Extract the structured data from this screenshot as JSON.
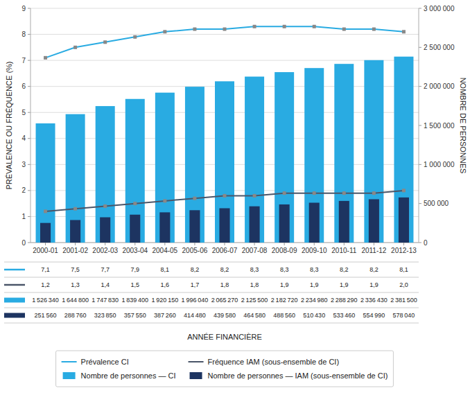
{
  "chart_data": {
    "type": "bar",
    "xlabel": "ANNÉE FINANCIÈRE",
    "ylabel": "PRÉVALENCE OU FRÉQUENCE (%)",
    "y2label": "NOMBRE DE PERSONNES",
    "categories": [
      "2000-01",
      "2001-02",
      "2002-03",
      "2003-04",
      "2004-05",
      "2005-06",
      "2006-07",
      "2007-08",
      "2008-09",
      "2009-10",
      "2010-11",
      "2011-12",
      "2012-13"
    ],
    "ylim": [
      0,
      9
    ],
    "yticks": [
      0,
      1,
      2,
      3,
      4,
      5,
      6,
      7,
      8,
      9
    ],
    "y2lim": [
      0,
      3000000
    ],
    "y2ticks": [
      0,
      {
        "value": 500000,
        "label": "500 000"
      },
      {
        "value": 1000000,
        "label": "1 000 000"
      },
      {
        "value": 1500000,
        "label": "1 500 000"
      },
      {
        "value": 2000000,
        "label": "2 000 000"
      },
      {
        "value": 2500000,
        "label": "2 500 000"
      },
      {
        "value": 3000000,
        "label": "3 000 000"
      }
    ],
    "grid": true,
    "legend": "bottom",
    "series": [
      {
        "name": "Prévalence CI",
        "type": "line",
        "color": "#29ABE2",
        "marker": "square",
        "values": [
          7.1,
          7.5,
          7.7,
          7.9,
          8.1,
          8.2,
          8.2,
          8.3,
          8.3,
          8.3,
          8.2,
          8.2,
          8.1
        ],
        "value_labels": [
          "7,1",
          "7,5",
          "7,7",
          "7,9",
          "8,1",
          "8,2",
          "8,2",
          "8,3",
          "8,3",
          "8,3",
          "8,2",
          "8,2",
          "8,1"
        ]
      },
      {
        "name": "Fréquence IAM (sous-ensemble de CI)",
        "type": "line",
        "color": "#4A5568",
        "marker": "square",
        "values": [
          1.2,
          1.3,
          1.4,
          1.5,
          1.6,
          1.7,
          1.8,
          1.8,
          1.9,
          1.9,
          1.9,
          1.9,
          2.0
        ],
        "value_labels": [
          "1,2",
          "1,3",
          "1,4",
          "1,5",
          "1,6",
          "1,7",
          "1,8",
          "1,8",
          "1,9",
          "1,9",
          "1,9",
          "1,9",
          "2,0"
        ]
      },
      {
        "name": "Nombre de personnes — CI",
        "type": "bar",
        "axis": "y2",
        "color": "#29ABE2",
        "values": [
          1526340,
          1644800,
          1747830,
          1839400,
          1920150,
          1996040,
          2065270,
          2125500,
          2182720,
          2234980,
          2288290,
          2336430,
          2381500
        ],
        "value_labels": [
          "1 526 340",
          "1 644 800",
          "1 747 830",
          "1 839 400",
          "1 920 150",
          "1 996 040",
          "2 065 270",
          "2 125 500",
          "2 182 720",
          "2 234 980",
          "2 288 290",
          "2 336 430",
          "2 381 500"
        ]
      },
      {
        "name": "Nombre de personnes — IAM (sous-ensemble de CI)",
        "type": "bar",
        "axis": "y2",
        "color": "#1D3461",
        "values": [
          251560,
          288760,
          323850,
          357550,
          387260,
          414480,
          439580,
          464580,
          488560,
          510430,
          533460,
          554990,
          578040
        ],
        "value_labels": [
          "251 560",
          "288 760",
          "323 850",
          "357 550",
          "387 260",
          "414 480",
          "439 580",
          "464 580",
          "488 560",
          "510 430",
          "533 460",
          "554 990",
          "578 040"
        ]
      }
    ]
  }
}
